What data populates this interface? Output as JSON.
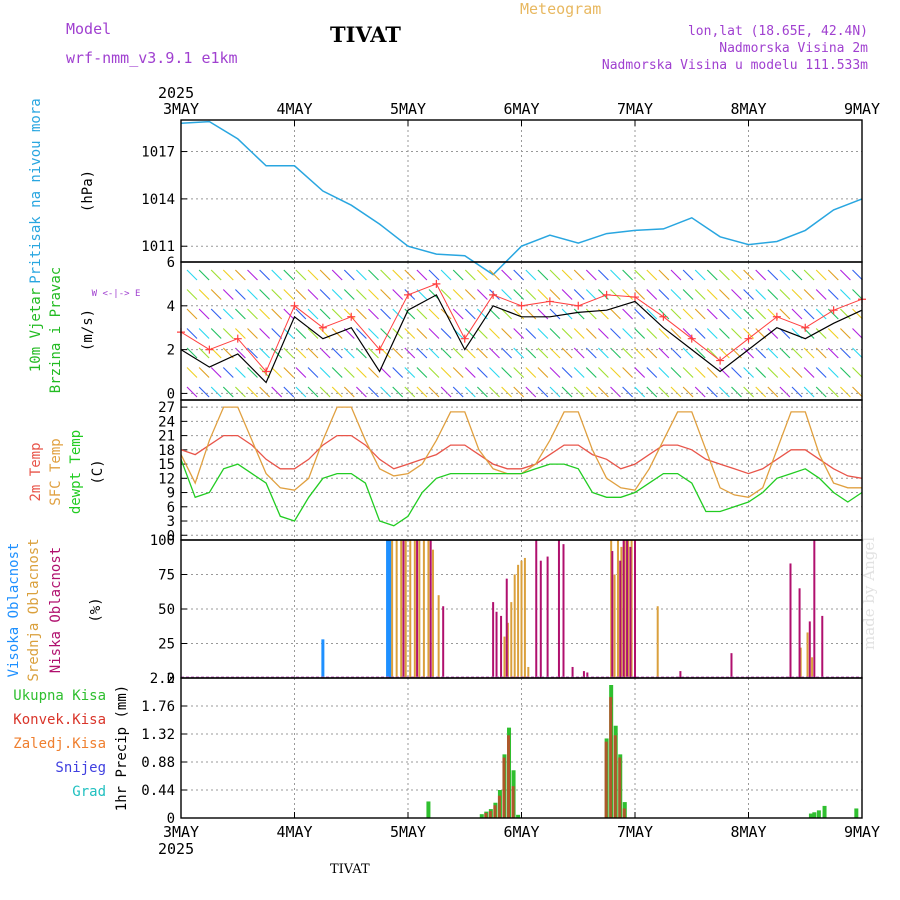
{
  "header": {
    "model_label": "Model",
    "model_name": "wrf-nmm_v3.9.1  e1km",
    "title": "TIVAT",
    "meteogram": "Meteogram",
    "lonlat": "lon,lat (18.65E, 42.4N)",
    "altitude": "Nadmorska Visina 2m",
    "model_altitude": "Nadmorska Visina u modelu 111.533m",
    "watermark": "made by Angel",
    "footer": "TIVAT"
  },
  "colors": {
    "pressure": "#29a6e0",
    "temp2m": "#e8554a",
    "sfc": "#e0a040",
    "dewpt": "#22cc22",
    "high_cloud": "#1e90ff",
    "mid_cloud": "#daa03c",
    "low_cloud": "#b0106e",
    "total_precip": "#2fbf2f",
    "conv_precip": "#d9352a",
    "frz_precip": "#ef7f2f",
    "snow": "#4040e0",
    "hail": "#20c0c0",
    "wind_speed": "#000000",
    "wind_gust": "#ff4040",
    "label_purple": "#a040d0"
  },
  "chart_data": [
    {
      "type": "line",
      "panel": "pressure",
      "ylabel_left": "Pritisak na nivou mora",
      "ylabel_unit": "(hPa)",
      "yticks": [
        "1017",
        "1014",
        "1011"
      ],
      "ylim": [
        1010,
        1019
      ],
      "x": [
        0,
        0.25,
        0.5,
        0.75,
        1,
        1.25,
        1.5,
        1.75,
        2,
        2.25,
        2.5,
        2.75,
        3,
        3.25,
        3.5,
        3.75,
        4,
        4.25,
        4.5,
        4.75,
        5,
        5.25,
        5.5,
        5.75,
        6
      ],
      "values": [
        1018.8,
        1018.9,
        1017.8,
        1016.1,
        1016.1,
        1014.5,
        1013.6,
        1012.4,
        1011.0,
        1010.5,
        1010.4,
        1009.2,
        1011.0,
        1011.7,
        1011.2,
        1011.8,
        1012.0,
        1012.1,
        1012.8,
        1011.6,
        1011.1,
        1011.3,
        1012.0,
        1013.3,
        1014.0
      ]
    },
    {
      "type": "line",
      "panel": "wind",
      "ylabel_left": "10m Vjetar",
      "ylabel_left2": "Brzina i Pravac",
      "ylabel_unit": "(m/s)",
      "compass": "W <-|-> E",
      "yticks": [
        "6",
        "4",
        "2",
        "0"
      ],
      "ylim": [
        -0.3,
        6
      ],
      "x": [
        0,
        0.25,
        0.5,
        0.75,
        1,
        1.25,
        1.5,
        1.75,
        2,
        2.25,
        2.5,
        2.75,
        3,
        3.25,
        3.5,
        3.75,
        4,
        4.25,
        4.5,
        4.75,
        5,
        5.25,
        5.5,
        5.75,
        6
      ],
      "speed": [
        2.0,
        1.2,
        1.8,
        0.5,
        3.5,
        2.5,
        3.0,
        1.0,
        3.8,
        4.5,
        2.0,
        4.0,
        3.5,
        3.5,
        3.7,
        3.8,
        4.2,
        3.0,
        2.0,
        1.0,
        2.0,
        3.0,
        2.5,
        3.2,
        3.8
      ],
      "gust": [
        2.8,
        2.0,
        2.5,
        1.0,
        4.0,
        3.0,
        3.5,
        2.0,
        4.5,
        5.0,
        2.5,
        4.5,
        4.0,
        4.2,
        4.0,
        4.5,
        4.4,
        3.5,
        2.5,
        1.5,
        2.5,
        3.5,
        3.0,
        3.8,
        4.3
      ]
    },
    {
      "type": "line",
      "panel": "temperature",
      "ylabel_left": "2m Temp",
      "ylabel_left2": "SFC Temp",
      "ylabel_left3": "dewpt Temp",
      "ylabel_unit": "(C)",
      "yticks": [
        "27",
        "24",
        "21",
        "18",
        "15",
        "12",
        "9",
        "6",
        "3",
        "0"
      ],
      "ylim": [
        -1,
        28.5
      ],
      "x": [
        0,
        0.125,
        0.25,
        0.375,
        0.5,
        0.625,
        0.75,
        0.875,
        1,
        1.125,
        1.25,
        1.375,
        1.5,
        1.625,
        1.75,
        1.875,
        2,
        2.125,
        2.25,
        2.375,
        2.5,
        2.625,
        2.75,
        2.875,
        3,
        3.125,
        3.25,
        3.375,
        3.5,
        3.625,
        3.75,
        3.875,
        4,
        4.125,
        4.25,
        4.375,
        4.5,
        4.625,
        4.75,
        4.875,
        5,
        5.125,
        5.25,
        5.375,
        5.5,
        5.625,
        5.75,
        5.875,
        6
      ],
      "series": [
        {
          "key": "temp2m",
          "values": [
            18,
            17,
            19,
            21,
            21,
            19,
            16,
            14,
            14,
            16,
            19,
            21,
            21,
            19,
            16,
            14,
            15,
            16,
            17,
            19,
            19,
            17,
            15,
            14,
            14,
            15,
            17,
            19,
            19,
            17,
            16,
            14,
            15,
            17,
            19,
            19,
            18,
            16,
            15,
            14,
            13,
            14,
            16,
            18,
            18,
            16,
            14,
            12.5,
            12
          ]
        },
        {
          "key": "sfc",
          "values": [
            17,
            11,
            20,
            27,
            27,
            20,
            13,
            10,
            9.5,
            12,
            20,
            27,
            27,
            20,
            14,
            12.5,
            13,
            15,
            20,
            26,
            26,
            18,
            14,
            13,
            13,
            15,
            20,
            26,
            26,
            18,
            12,
            10,
            9.5,
            14,
            20,
            26,
            26,
            18,
            10,
            8.5,
            8,
            10,
            18,
            26,
            26,
            17,
            11,
            10,
            10
          ]
        },
        {
          "key": "dewpt",
          "values": [
            16,
            8,
            9,
            14,
            15,
            13,
            11,
            4,
            3,
            8,
            12,
            13,
            13,
            11,
            3,
            2,
            4,
            9,
            12,
            13,
            13,
            13,
            13,
            13,
            13,
            14,
            15,
            15,
            14,
            9,
            8,
            8,
            9,
            11,
            13,
            13,
            11,
            5,
            5,
            6,
            7,
            9,
            12,
            13,
            14,
            12,
            9,
            7,
            9
          ]
        }
      ]
    },
    {
      "type": "bar",
      "panel": "clouds",
      "ylabel_left": "Visoka Oblacnost",
      "ylabel_left2": "Srednja Oblacnost",
      "ylabel_left3": "Niska Oblacnost",
      "ylabel_unit": "(%)",
      "yticks": [
        "100",
        "75",
        "50",
        "25",
        "0"
      ],
      "ylim": [
        0,
        100
      ],
      "high": {
        "x": [
          1.25,
          1.82,
          1.84
        ],
        "values": [
          28,
          100,
          100
        ]
      },
      "mid": {
        "x": [
          1.86,
          1.9,
          1.94,
          1.98,
          2.02,
          2.06,
          2.1,
          2.14,
          2.18,
          2.22,
          2.27,
          2.85,
          2.88,
          2.91,
          2.94,
          2.97,
          3.0,
          3.03,
          3.06,
          3.79,
          3.82,
          3.85,
          3.88,
          3.91,
          3.94,
          3.97,
          4.2,
          5.46,
          5.52,
          5.56
        ],
        "values": [
          100,
          100,
          100,
          100,
          100,
          100,
          100,
          100,
          100,
          93,
          60,
          30,
          40,
          55,
          75,
          82,
          85,
          87,
          8,
          100,
          75,
          100,
          95,
          100,
          100,
          100,
          52,
          22,
          33,
          15
        ]
      },
      "low": {
        "x": [
          1.96,
          2.08,
          2.2,
          2.31,
          2.75,
          2.78,
          2.82,
          2.87,
          3.13,
          3.17,
          3.23,
          3.33,
          3.37,
          3.45,
          3.55,
          3.58,
          3.8,
          3.87,
          3.9,
          3.93,
          3.96,
          4.0,
          4.4,
          4.85,
          5.37,
          5.45,
          5.54,
          5.58,
          5.65
        ],
        "values": [
          100,
          100,
          100,
          52,
          55,
          48,
          45,
          72,
          100,
          85,
          88,
          100,
          97,
          8,
          5,
          4,
          92,
          85,
          100,
          100,
          95,
          100,
          5,
          18,
          83,
          65,
          41,
          100,
          45
        ]
      }
    },
    {
      "type": "bar",
      "panel": "precip",
      "ylabel_left": "1hr Precip (mm)",
      "legend": [
        "Ukupna Kisa",
        "Konvek.Kisa",
        "Zaledj.Kisa",
        "Snijeg",
        "Grad"
      ],
      "yticks": [
        "2.2",
        "1.76",
        "1.32",
        "0.88",
        "0.44",
        "0"
      ],
      "ylim": [
        0,
        2.2
      ],
      "total": {
        "x": [
          2.18,
          2.65,
          2.69,
          2.73,
          2.77,
          2.81,
          2.85,
          2.89,
          2.93,
          2.97,
          3.75,
          3.79,
          3.83,
          3.87,
          3.91,
          5.55,
          5.58,
          5.62,
          5.67,
          5.95
        ],
        "values": [
          0.26,
          0.06,
          0.1,
          0.14,
          0.24,
          0.44,
          1.0,
          1.42,
          0.75,
          0.05,
          1.25,
          2.09,
          1.45,
          1.0,
          0.25,
          0.07,
          0.09,
          0.12,
          0.19,
          0.15
        ]
      },
      "conv": {
        "x": [
          2.69,
          2.73,
          2.77,
          2.81,
          2.85,
          2.89,
          2.93,
          3.75,
          3.79,
          3.83,
          3.87,
          3.91
        ],
        "values": [
          0.08,
          0.11,
          0.2,
          0.35,
          0.95,
          1.3,
          0.5,
          1.2,
          1.9,
          1.3,
          0.95,
          0.15
        ]
      }
    }
  ],
  "xaxis": {
    "year_top": "2025",
    "year_bottom": "2025",
    "labels": [
      "3MAY",
      "4MAY",
      "5MAY",
      "6MAY",
      "7MAY",
      "8MAY",
      "9MAY"
    ]
  }
}
